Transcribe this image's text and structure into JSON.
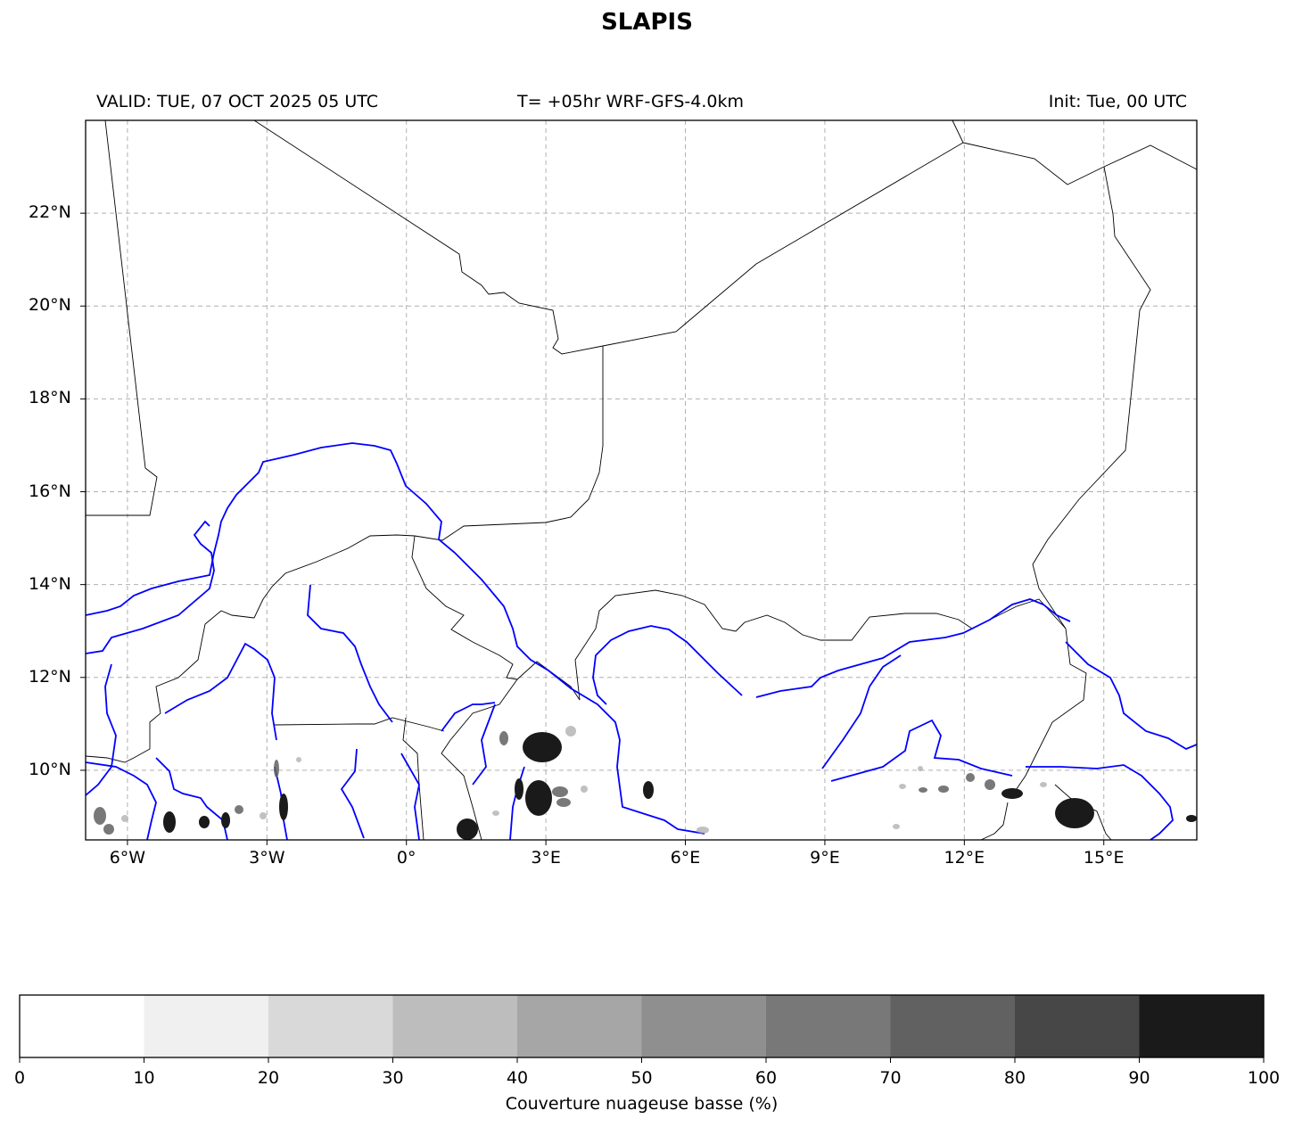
{
  "title": "SLAPIS",
  "header": {
    "valid": "VALID: TUE, 07 OCT 2025 05 UTC",
    "forecast": "T= +05hr WRF-GFS-4.0km",
    "init": "Init: Tue, 00 UTC"
  },
  "map": {
    "lon_range": [
      -6.9,
      17
    ],
    "lat_range": [
      8.5,
      24
    ],
    "lon_ticks": [
      {
        "value": -6,
        "label": "6°W"
      },
      {
        "value": -3,
        "label": "3°W"
      },
      {
        "value": 0,
        "label": "0°"
      },
      {
        "value": 3,
        "label": "3°E"
      },
      {
        "value": 6,
        "label": "6°E"
      },
      {
        "value": 9,
        "label": "9°E"
      },
      {
        "value": 12,
        "label": "12°E"
      },
      {
        "value": 15,
        "label": "15°E"
      }
    ],
    "lat_ticks": [
      {
        "value": 10,
        "label": "10°N"
      },
      {
        "value": 12,
        "label": "12°N"
      },
      {
        "value": 14,
        "label": "14°N"
      },
      {
        "value": 16,
        "label": "16°N"
      },
      {
        "value": 18,
        "label": "18°N"
      },
      {
        "value": 20,
        "label": "20°N"
      },
      {
        "value": 22,
        "label": "22°N"
      }
    ],
    "gridlines": true,
    "colors": {
      "borders": "#000000",
      "rivers": "#0000ff",
      "grid": "#b0b0b0"
    }
  },
  "colorbar": {
    "label": "Couverture nuageuse basse (%)",
    "ticks": [
      "0",
      "10",
      "20",
      "30",
      "40",
      "50",
      "60",
      "70",
      "80",
      "90",
      "100"
    ],
    "colors": [
      "#ffffff",
      "#f0f0f0",
      "#d9d9d9",
      "#bdbdbd",
      "#a6a6a6",
      "#8f8f8f",
      "#787878",
      "#616161",
      "#474747",
      "#1a1a1a"
    ]
  }
}
